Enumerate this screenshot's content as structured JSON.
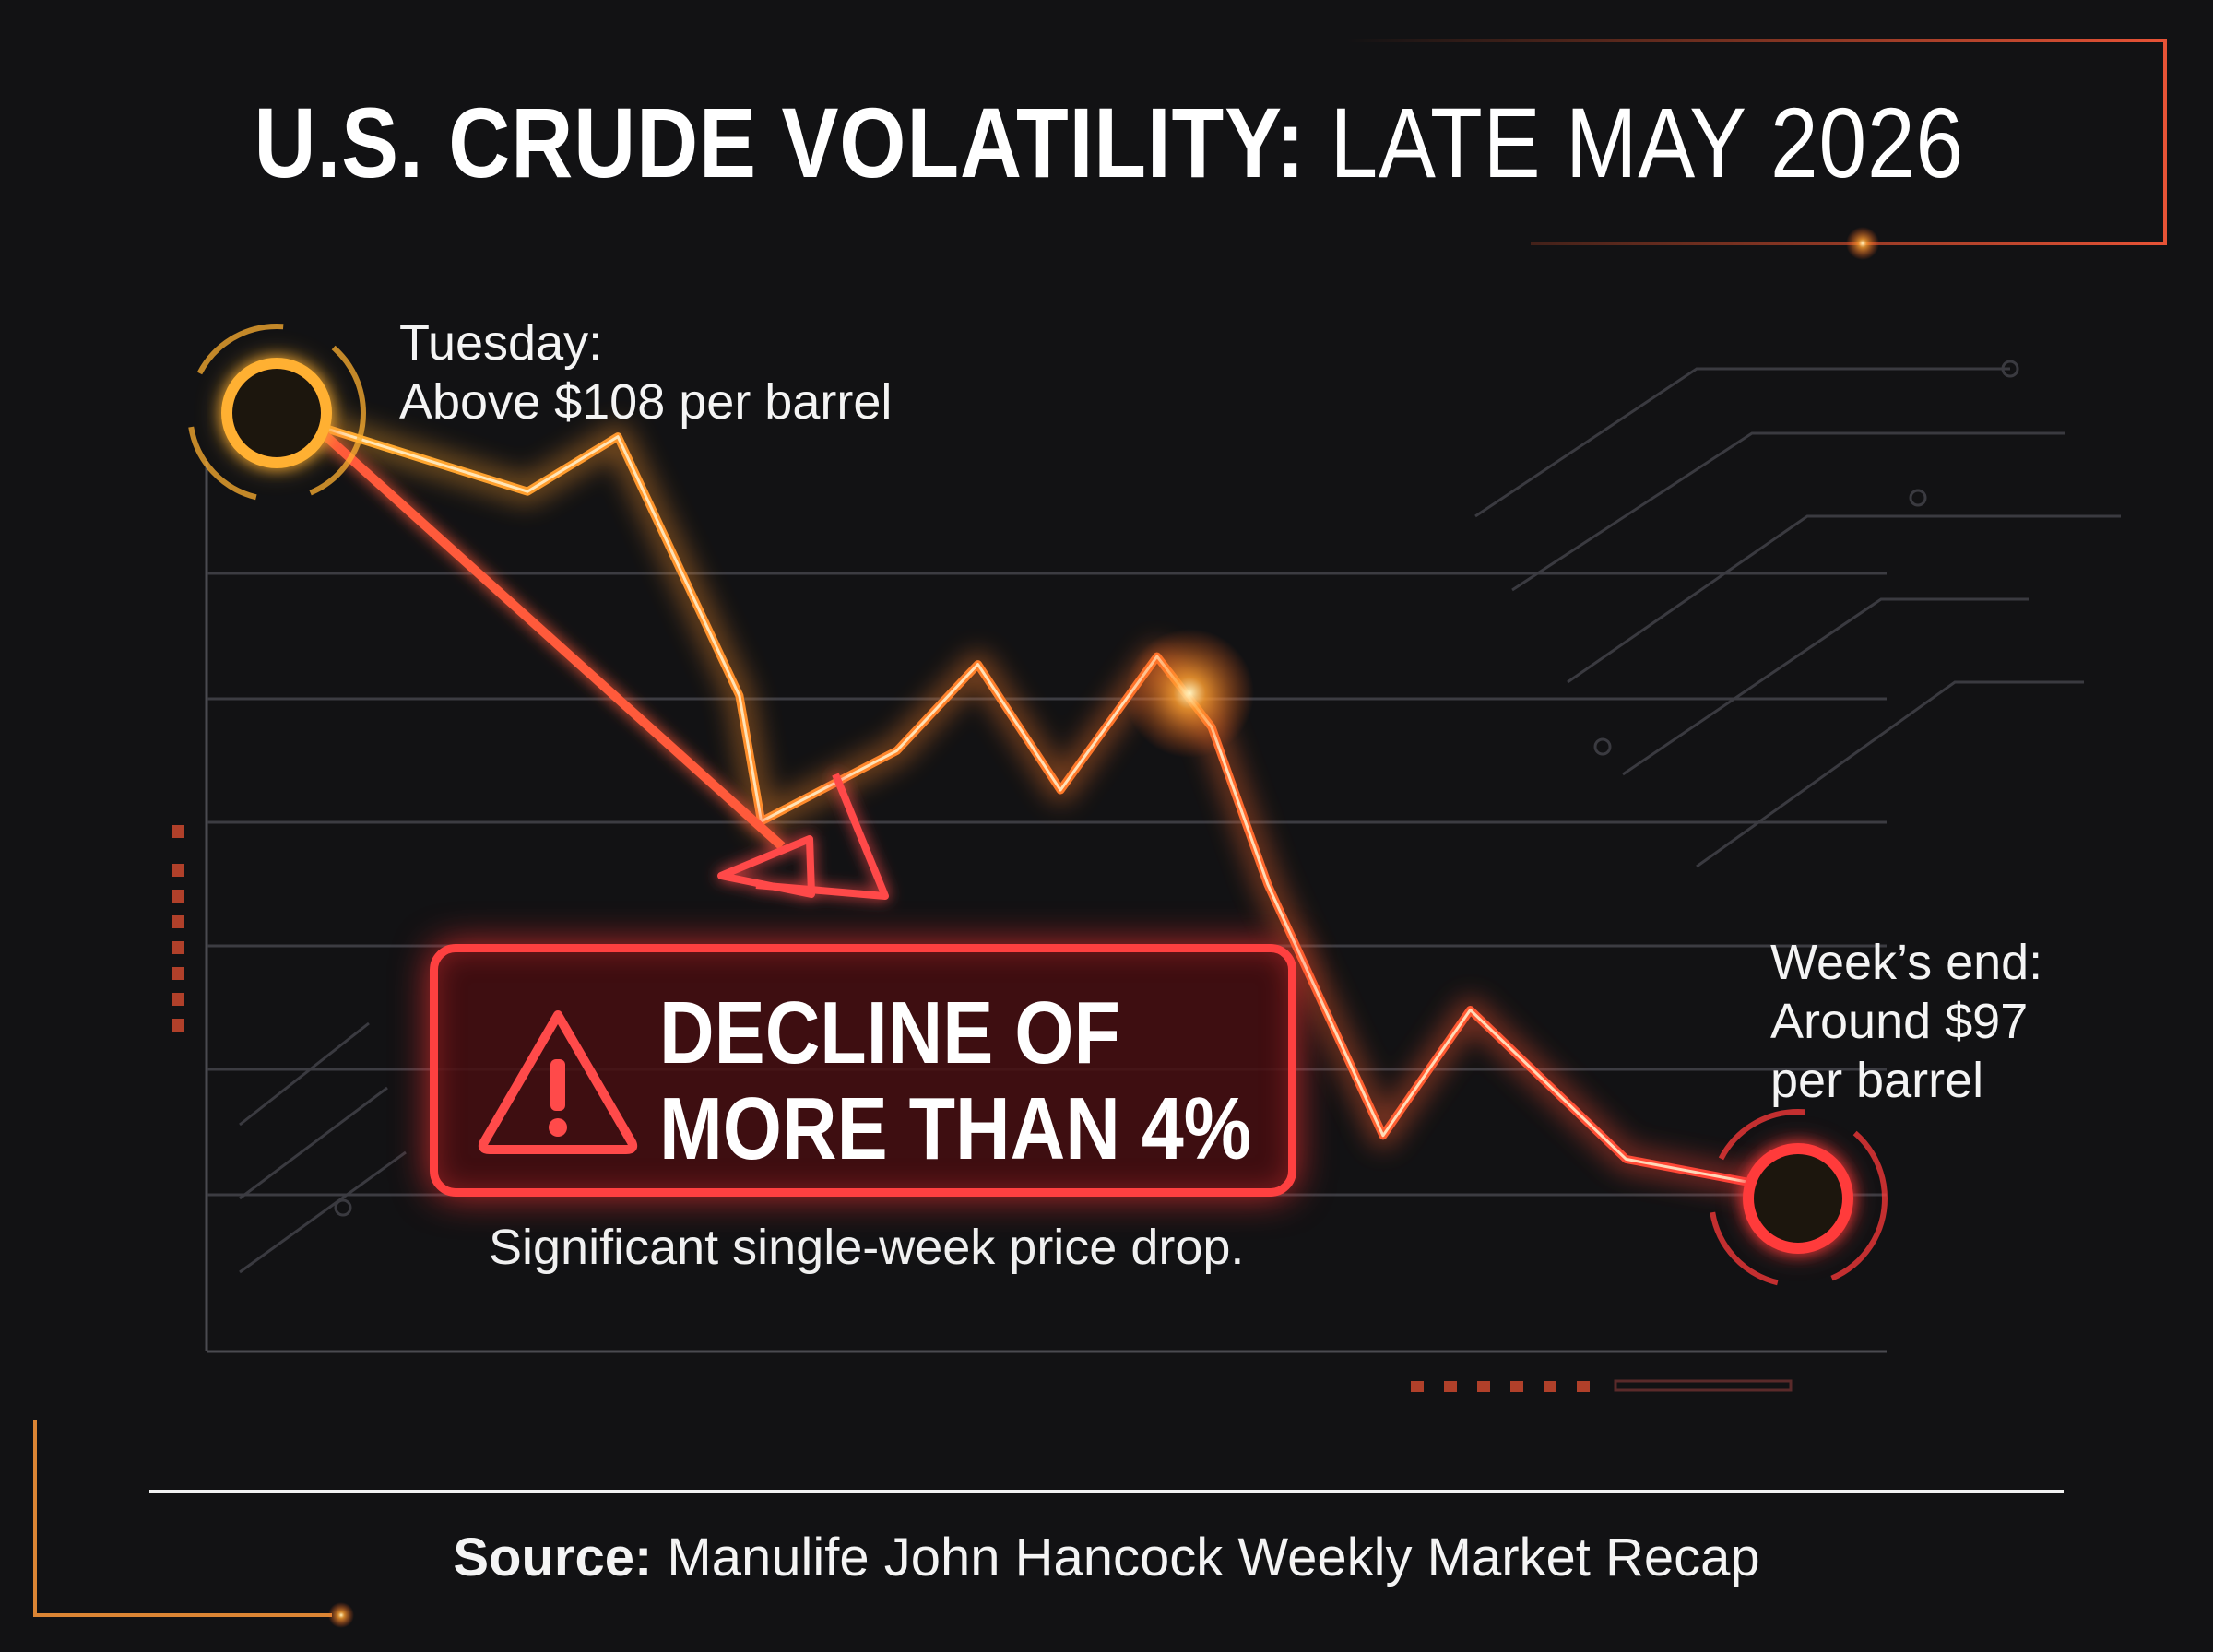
{
  "title": {
    "bold": "U.S. CRUDE VOLATILITY:",
    "light": "LATE MAY 2026"
  },
  "annotations": {
    "start": {
      "line1": "Tuesday:",
      "line2": "Above $108 per barrel"
    },
    "end": {
      "line1": "Week’s end:",
      "line2": "Around $97",
      "line3": "per barrel"
    }
  },
  "callout": {
    "line1": "DECLINE OF",
    "line2": "MORE THAN 4%",
    "subtext": "Significant single-week price drop.",
    "icon": "warning-triangle-icon"
  },
  "source": {
    "label": "Source:",
    "text": "Manulife John Hancock Weekly Market Recap"
  },
  "colors": {
    "background": "#121214",
    "line_start": "#ffb030",
    "line_end": "#ff3a3a",
    "callout_border": "#ff4040",
    "frame": "#ff7a2a"
  },
  "chart_data": {
    "type": "line",
    "title": "U.S. CRUDE VOLATILITY: LATE MAY 2026",
    "xlabel": "",
    "ylabel": "",
    "grid": true,
    "legend": "none",
    "unit": "$ per barrel",
    "endpoints": [
      {
        "label": "Tuesday",
        "value": 108,
        "qualifier": "Above"
      },
      {
        "label": "Week’s end",
        "value": 97,
        "qualifier": "Around"
      }
    ],
    "change_label": "Decline of more than 4%"
  }
}
